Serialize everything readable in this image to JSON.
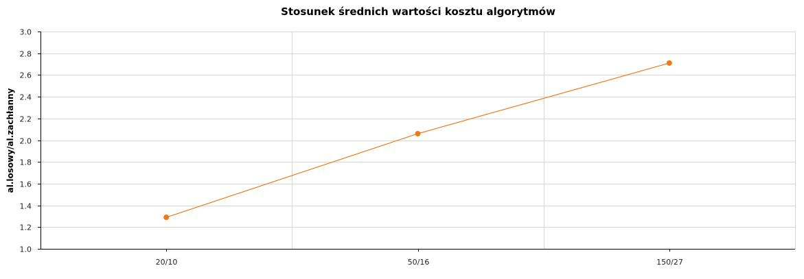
{
  "chart_data": {
    "type": "line",
    "title": "Stosunek średnich wartości kosztu algorytmów",
    "xlabel": "",
    "ylabel": "al.losowy/al.zachłanny",
    "categories": [
      "20/10",
      "50/16",
      "150/27"
    ],
    "series": [
      {
        "values": [
          1.29,
          2.06,
          2.71
        ],
        "color": "#f07a1a"
      }
    ],
    "ylim": [
      1.0,
      3.0
    ],
    "yticks": [
      "1.0",
      "1.2",
      "1.4",
      "1.6",
      "1.8",
      "2.0",
      "2.2",
      "2.4",
      "2.6",
      "2.8",
      "3.0"
    ],
    "grid": true,
    "legend": "none"
  }
}
